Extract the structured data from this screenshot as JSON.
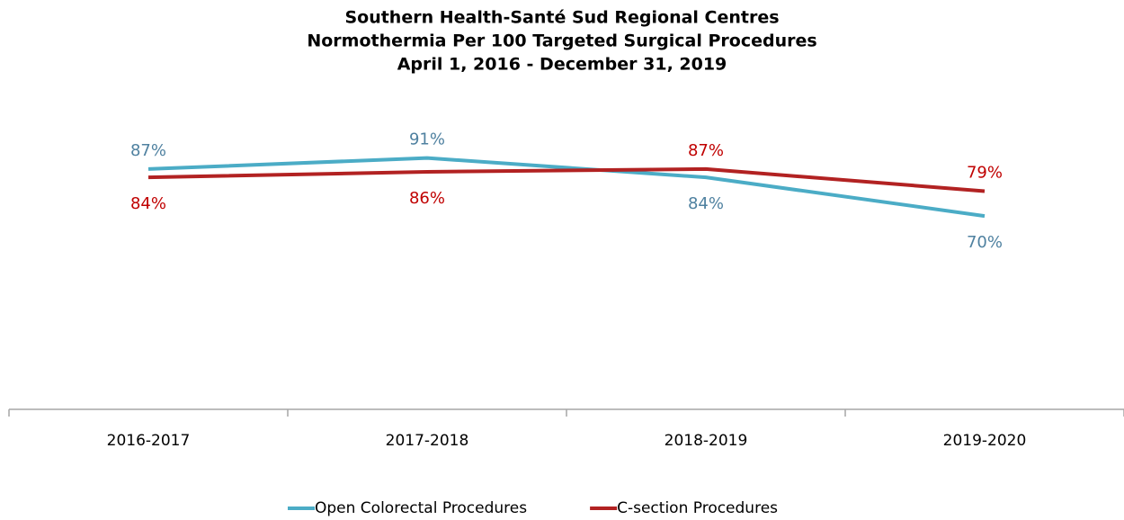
{
  "chart_data": {
    "type": "line",
    "title": [
      "Southern Health-Santé Sud Regional Centres",
      "Normothermia Per 100 Targeted Surgical Procedures",
      "April 1, 2016 - December 31, 2019"
    ],
    "categories": [
      "2016-2017",
      "2017-2018",
      "2018-2019",
      "2019-2020"
    ],
    "series": [
      {
        "name": "Open Colorectal Procedures",
        "color": "#4bacc6",
        "label_color": "#4f81a0",
        "values": [
          87,
          91,
          84,
          70
        ],
        "value_labels": [
          "87%",
          "91%",
          "84%",
          "70%"
        ]
      },
      {
        "name": "C-section Procedures",
        "color": "#b22222",
        "label_color": "#c00000",
        "values": [
          84,
          86,
          87,
          79
        ],
        "value_labels": [
          "84%",
          "86%",
          "87%",
          "79%"
        ]
      }
    ],
    "ylim": [
      0,
      100
    ],
    "legend": "bottom"
  }
}
